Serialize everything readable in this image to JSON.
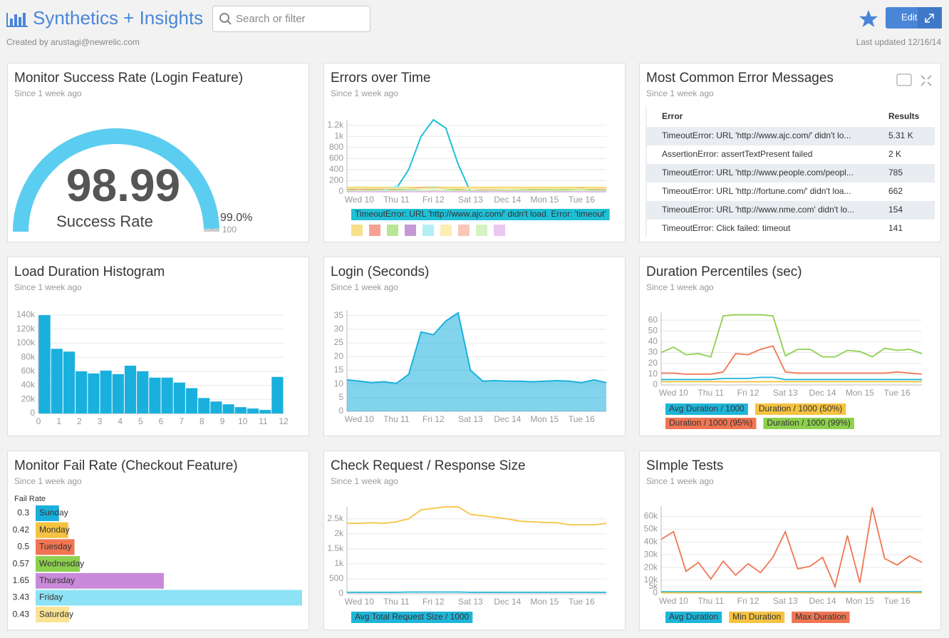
{
  "header": {
    "title": "Synthetics + Insights",
    "search_placeholder": "Search or filter",
    "edit": "Edit",
    "created_by": "Created by arustagi@newrelic.com",
    "last_updated": "Last updated 12/16/14"
  },
  "chart_data": [
    {
      "type": "gauge",
      "title": "Monitor Success Rate (Login Feature)",
      "subtitle": "Since 1 week ago",
      "value": 98.99,
      "label": "Success Rate",
      "threshold": {
        "value": 99,
        "label": "99.0%"
      },
      "max": 100,
      "color": "#5bcdf0"
    },
    {
      "type": "line",
      "title": "Errors over Time",
      "subtitle": "Since 1 week ago",
      "categories": [
        null,
        "Wed 10",
        null,
        null,
        "Thu 11",
        null,
        null,
        "Fri 12",
        null,
        null,
        "Sat 13",
        null,
        null,
        "Dec 14",
        null,
        null,
        "Mon 15",
        null,
        null,
        "Tue 16",
        null,
        null
      ],
      "ylim": [
        0,
        1300
      ],
      "yticks": [
        0,
        200,
        400,
        600,
        800,
        {
          "value": 1000,
          "label": "1k"
        },
        {
          "value": 1200,
          "label": "1.2k"
        }
      ],
      "series": [
        {
          "name": "TimeoutError: URL 'http://www.ajc.com/' didn't load. Error: 'timeout'",
          "color": "#1fc0d6",
          "values": [
            20,
            10,
            30,
            20,
            60,
            400,
            1000,
            1300,
            1150,
            500,
            0,
            0,
            10,
            0,
            5,
            0,
            10,
            0,
            5,
            10,
            0,
            5
          ]
        },
        {
          "color": "#f5d76e",
          "values": [
            80,
            80,
            80,
            80,
            80,
            80,
            80,
            80,
            80,
            80,
            80,
            80,
            80,
            80,
            80,
            80,
            80,
            80,
            80,
            80,
            80,
            80
          ]
        },
        {
          "color": "#f58b76",
          "values": [
            40,
            50,
            45,
            40,
            50,
            60,
            70,
            80,
            60,
            40,
            20,
            30,
            30,
            25,
            30,
            40,
            50,
            30,
            50,
            70,
            40,
            30
          ]
        },
        {
          "color": "#a6e07a",
          "values": [
            30,
            20,
            30,
            25,
            30,
            40,
            60,
            80,
            50,
            30,
            20,
            20,
            25,
            20,
            30,
            30,
            40,
            30,
            40,
            50,
            30,
            20
          ]
        },
        {
          "color": "#b980c9",
          "values": [
            10,
            20,
            10,
            15,
            10,
            20,
            10,
            20,
            15,
            10,
            10,
            15,
            10,
            10,
            15,
            10,
            10,
            15,
            10,
            10,
            15,
            10
          ]
        },
        {
          "color": "#a3e8f5",
          "values": [
            10,
            20,
            10,
            30,
            100,
            30,
            20,
            10,
            20,
            10,
            5,
            10,
            5,
            10,
            5,
            10,
            5,
            10,
            5,
            10,
            5,
            10
          ]
        },
        {
          "color": "#fbe8a0",
          "values": [
            60,
            60,
            60,
            60,
            60,
            60,
            60,
            60,
            60,
            60,
            60,
            60,
            60,
            60,
            60,
            60,
            60,
            60,
            60,
            60,
            60,
            60
          ]
        },
        {
          "color": "#f8b8a5",
          "values": [
            5,
            5,
            5,
            5,
            5,
            5,
            5,
            5,
            5,
            5,
            5,
            5,
            5,
            5,
            5,
            5,
            5,
            5,
            5,
            5,
            5,
            5
          ]
        },
        {
          "color": "#c9f0b0",
          "values": [
            15,
            15,
            15,
            15,
            15,
            15,
            15,
            15,
            15,
            15,
            15,
            15,
            15,
            15,
            15,
            15,
            15,
            15,
            15,
            15,
            15,
            15
          ]
        },
        {
          "color": "#e5b9ec",
          "values": [
            0,
            0,
            0,
            0,
            0,
            0,
            0,
            0,
            0,
            0,
            0,
            0,
            0,
            0,
            0,
            0,
            0,
            0,
            0,
            0,
            0,
            0
          ]
        }
      ]
    },
    {
      "type": "table",
      "title": "Most Common Error Messages",
      "subtitle": "Since 1 week ago",
      "columns": [
        "Error",
        "Results"
      ],
      "rows": [
        [
          "TimeoutError: URL 'http://www.ajc.com/' didn't lo...",
          "5.31 K"
        ],
        [
          "AssertionError: assertTextPresent failed",
          "2 K"
        ],
        [
          "TimeoutError: URL 'http://www.people.com/peopl...",
          "785"
        ],
        [
          "TimeoutError: URL 'http://fortune.com/' didn't loa...",
          "662"
        ],
        [
          "TimeoutError: URL 'http://www.nme.com' didn't lo...",
          "154"
        ],
        [
          "TimeoutError: Click failed: timeout",
          "141"
        ]
      ]
    },
    {
      "type": "histogram",
      "title": "Load Duration Histogram",
      "subtitle": "Since 1 week ago",
      "color": "#1ab0dd",
      "bins": [
        0,
        0.6,
        1.2,
        1.8,
        2.4,
        3,
        3.6,
        4.2,
        4.8,
        5.4,
        6,
        6.6,
        7.2,
        7.8,
        8.4,
        9,
        9.6,
        10.2,
        10.8,
        11.4,
        12
      ],
      "values": [
        140000,
        92000,
        88000,
        60000,
        57000,
        61000,
        56000,
        68000,
        60000,
        51000,
        51000,
        44000,
        36000,
        22000,
        17000,
        13000,
        9000,
        7000,
        5000,
        52000
      ],
      "xlim": [
        0,
        12
      ],
      "xticks": [
        0,
        1,
        2,
        3,
        4,
        5,
        6,
        7,
        8,
        9,
        10,
        11,
        12
      ],
      "ylim": [
        0,
        140000
      ],
      "yticks": [
        0,
        {
          "value": 20000,
          "label": "20k"
        },
        {
          "value": 40000,
          "label": "40k"
        },
        {
          "value": 60000,
          "label": "60k"
        },
        {
          "value": 80000,
          "label": "80k"
        },
        {
          "value": 100000,
          "label": "100k"
        },
        {
          "value": 120000,
          "label": "120k"
        },
        {
          "value": 140000,
          "label": "140k"
        }
      ]
    },
    {
      "type": "area",
      "title": "Login (Seconds)",
      "subtitle": "Since 1 week ago",
      "categories": [
        null,
        "Wed 10",
        null,
        null,
        "Thu 11",
        null,
        null,
        "Fri 12",
        null,
        null,
        "Sat 13",
        null,
        null,
        "Dec 14",
        null,
        null,
        "Mon 15",
        null,
        null,
        "Tue 16",
        null,
        null
      ],
      "ylim": [
        0,
        37
      ],
      "yticks": [
        0,
        5,
        10,
        15,
        20,
        25,
        30,
        35
      ],
      "series": [
        {
          "color": "#1ab0dd",
          "values": [
            11.5,
            11,
            10.5,
            10.8,
            10.2,
            13.5,
            29,
            28,
            33,
            36,
            15,
            11,
            11.2,
            11,
            11,
            10.8,
            11,
            11.2,
            11,
            10.5,
            11.5,
            10.5
          ]
        }
      ]
    },
    {
      "type": "line",
      "title": "Duration Percentiles (sec)",
      "subtitle": "Since 1 week ago",
      "categories": [
        null,
        "Wed 10",
        null,
        null,
        "Thu 11",
        null,
        null,
        "Fri 12",
        null,
        null,
        "Sat 13",
        null,
        null,
        "Dec 14",
        null,
        null,
        "Mon 15",
        null,
        null,
        "Tue 16",
        null,
        null
      ],
      "ylim": [
        0,
        68
      ],
      "yticks": [
        0,
        10,
        20,
        30,
        40,
        50,
        60
      ],
      "series": [
        {
          "name": "Avg Duration / 1000",
          "color": "#1fb5d9",
          "values": [
            5,
            5,
            5,
            5,
            5,
            6,
            6,
            6,
            7,
            7,
            5,
            5,
            5,
            5,
            5,
            5,
            5,
            5,
            5,
            5,
            5,
            5
          ]
        },
        {
          "name": "Duration / 1000 (50%)",
          "color": "#f5c342",
          "values": [
            3,
            3,
            3,
            3,
            3,
            3,
            3,
            3,
            3,
            3,
            3,
            3,
            3,
            3,
            3,
            3,
            3,
            3,
            3,
            3,
            3,
            3
          ]
        },
        {
          "name": "Duration / 1000 (95%)",
          "color": "#f07553",
          "values": [
            11,
            11,
            10,
            10,
            10,
            12,
            29,
            28,
            33,
            36,
            12,
            11,
            11,
            11,
            11,
            11,
            11,
            11,
            11,
            12,
            11,
            10
          ]
        },
        {
          "name": "Duration / 1000 (99%)",
          "color": "#8dd04e",
          "values": [
            30,
            35,
            28,
            29,
            26,
            64,
            65,
            65,
            65,
            64,
            27,
            33,
            33,
            26,
            26,
            32,
            31,
            26,
            34,
            32,
            33,
            29
          ]
        }
      ]
    },
    {
      "type": "hbar",
      "title": "Monitor Fail Rate (Checkout Feature)",
      "subtitle": "Since 1 week ago",
      "value_axis_label": "Fail Rate",
      "categories": [
        "Sunday",
        "Monday",
        "Tuesday",
        "Wednesday",
        "Thursday",
        "Friday",
        "Saturday"
      ],
      "values": [
        0.3,
        0.42,
        0.5,
        0.57,
        1.65,
        3.43,
        0.43
      ],
      "colors": [
        "#1ab0dd",
        "#f5c342",
        "#f07553",
        "#8dd04e",
        "#c98ad9",
        "#8de3f5",
        "#fbe395"
      ]
    },
    {
      "type": "line",
      "title": "Check Request / Response Size",
      "subtitle": "Since 1 week ago",
      "categories": [
        null,
        "Wed 10",
        null,
        null,
        "Thu 11",
        null,
        null,
        "Fri 12",
        null,
        null,
        "Sat 13",
        null,
        null,
        "Dec 14",
        null,
        null,
        "Mon 15",
        null,
        null,
        "Tue 16",
        null,
        null
      ],
      "ylim": [
        0,
        2900
      ],
      "yticks": [
        0,
        500,
        {
          "value": 1000,
          "label": "1k"
        },
        {
          "value": 1500,
          "label": "1.5k"
        },
        {
          "value": 2000,
          "label": "2k"
        },
        {
          "value": 2500,
          "label": "2.5k"
        }
      ],
      "series": [
        {
          "name": "Avg Total Request Size / 1000",
          "color": "#1fb5d9",
          "values": [
            50,
            50,
            50,
            50,
            50,
            60,
            60,
            60,
            60,
            60,
            50,
            50,
            50,
            50,
            50,
            50,
            50,
            50,
            50,
            50,
            50,
            50
          ]
        },
        {
          "color": "#f5c342",
          "values": [
            2350,
            2350,
            2370,
            2350,
            2400,
            2500,
            2800,
            2850,
            2900,
            2900,
            2650,
            2600,
            2550,
            2500,
            2420,
            2400,
            2380,
            2370,
            2300,
            2300,
            2300,
            2350
          ]
        }
      ]
    },
    {
      "type": "line",
      "title": "SImple Tests",
      "subtitle": "Since 1 week ago",
      "categories": [
        null,
        "Wed 10",
        null,
        null,
        "Thu 11",
        null,
        null,
        "Fri 12",
        null,
        null,
        "Sat 13",
        null,
        null,
        "Dec 14",
        null,
        null,
        "Mon 15",
        null,
        null,
        "Tue 16",
        null,
        null
      ],
      "ylim": [
        0,
        68000
      ],
      "yticks": [
        0,
        {
          "value": 5000,
          "label": "5k"
        },
        {
          "value": 10000,
          "label": "10k"
        },
        {
          "value": 20000,
          "label": "20k"
        },
        {
          "value": 30000,
          "label": "30k"
        },
        {
          "value": 40000,
          "label": "40k"
        },
        {
          "value": 50000,
          "label": "50k"
        },
        {
          "value": 60000,
          "label": "60k"
        }
      ],
      "series": [
        {
          "name": "Avg Duration",
          "color": "#1fb5d9",
          "values": [
            1000,
            1000,
            1000,
            1000,
            1000,
            1000,
            1000,
            1000,
            1000,
            1000,
            1000,
            1000,
            1000,
            1000,
            1000,
            1000,
            1000,
            1000,
            1000,
            1000,
            1000,
            1000
          ]
        },
        {
          "name": "Min Duration",
          "color": "#f5c342",
          "values": [
            200,
            200,
            200,
            200,
            200,
            200,
            200,
            200,
            200,
            200,
            200,
            200,
            200,
            200,
            200,
            200,
            200,
            200,
            200,
            200,
            200,
            200
          ]
        },
        {
          "name": "Max Duration",
          "color": "#f07553",
          "values": [
            42000,
            48000,
            17000,
            24000,
            11000,
            25000,
            14000,
            23000,
            16000,
            28000,
            48000,
            19000,
            21000,
            28000,
            5000,
            45000,
            8000,
            67000,
            27000,
            22000,
            29000,
            24000
          ]
        }
      ]
    }
  ]
}
